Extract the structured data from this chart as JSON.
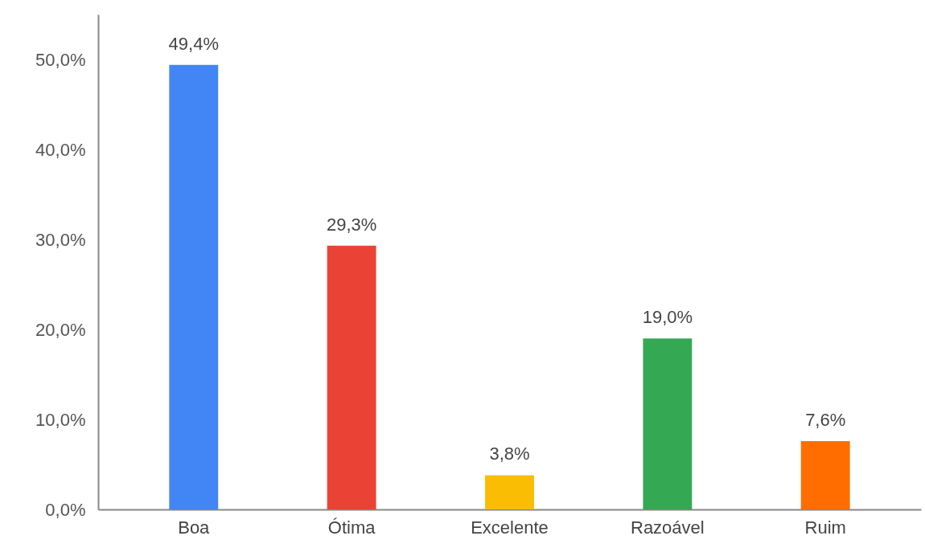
{
  "chart_data": {
    "type": "bar",
    "categories": [
      "Boa",
      "Ótima",
      "Excelente",
      "Razoável",
      "Ruim"
    ],
    "values": [
      49.4,
      29.3,
      3.8,
      19.0,
      7.6
    ],
    "colors": [
      "#4285f4",
      "#ea4335",
      "#fbbc04",
      "#34a853",
      "#ff6d01"
    ],
    "value_labels": [
      "49,4%",
      "29,3%",
      "3,8%",
      "19,0%",
      "7,6%"
    ],
    "ylim": [
      0,
      55
    ],
    "yticks": [
      {
        "value": 0,
        "label": "0,0%"
      },
      {
        "value": 10,
        "label": "10,0%"
      },
      {
        "value": 20,
        "label": "20,0%"
      },
      {
        "value": 30,
        "label": "30,0%"
      },
      {
        "value": 40,
        "label": "40,0%"
      },
      {
        "value": 50,
        "label": "50,0%"
      }
    ],
    "grid": false
  }
}
